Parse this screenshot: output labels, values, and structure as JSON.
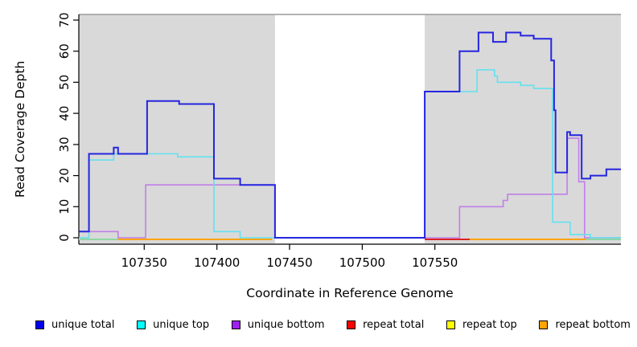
{
  "chart_data": {
    "type": "line",
    "subtype": "step",
    "title": "",
    "xlabel": "Coordinate in Reference Genome",
    "ylabel": "Read Coverage Depth",
    "xlim": [
      107305,
      107678
    ],
    "ylim": [
      0,
      70
    ],
    "xticks": [
      107350,
      107400,
      107450,
      107500,
      107550
    ],
    "yticks": [
      0,
      10,
      20,
      30,
      40,
      50,
      60,
      70
    ],
    "grid": false,
    "legend_position": "bottom",
    "plot_bg": "#ffffff",
    "shade_color": "#d9d9d9",
    "shaded_regions": [
      {
        "x0": 107305,
        "x1": 107440
      },
      {
        "x0": 107543,
        "x1": 107678
      }
    ],
    "series": [
      {
        "name": "unique total",
        "color": "#2525DF",
        "lw": 2,
        "points": [
          [
            107305,
            2
          ],
          [
            107312,
            27
          ],
          [
            107329,
            29
          ],
          [
            107332,
            27
          ],
          [
            107352,
            44
          ],
          [
            107374,
            43
          ],
          [
            107398,
            19
          ],
          [
            107416,
            17
          ],
          [
            107440,
            0
          ],
          [
            107543,
            47
          ],
          [
            107567,
            60
          ],
          [
            107580,
            66
          ],
          [
            107590,
            63
          ],
          [
            107599,
            66
          ],
          [
            107609,
            65
          ],
          [
            107618,
            64
          ],
          [
            107630,
            57
          ],
          [
            107632,
            41
          ],
          [
            107633,
            21
          ],
          [
            107641,
            34
          ],
          [
            107643,
            33
          ],
          [
            107651,
            19
          ],
          [
            107657,
            20
          ],
          [
            107668,
            22
          ]
        ]
      },
      {
        "name": "unique top",
        "color": "#63E1EF",
        "lw": 1.6,
        "points": [
          [
            107305,
            0
          ],
          [
            107312,
            25
          ],
          [
            107329,
            27
          ],
          [
            107373,
            26
          ],
          [
            107398,
            2
          ],
          [
            107416,
            0
          ],
          [
            107543,
            47
          ],
          [
            107579,
            54
          ],
          [
            107591,
            52
          ],
          [
            107593,
            50
          ],
          [
            107609,
            49
          ],
          [
            107618,
            48
          ],
          [
            107631,
            5
          ],
          [
            107643,
            1
          ],
          [
            107657,
            0
          ]
        ]
      },
      {
        "name": "unique bottom",
        "color": "#C07FE8",
        "lw": 1.6,
        "points": [
          [
            107305,
            2
          ],
          [
            107332,
            0
          ],
          [
            107351,
            17
          ],
          [
            107440,
            0
          ],
          [
            107567,
            10
          ],
          [
            107597,
            12
          ],
          [
            107600,
            14
          ],
          [
            107641,
            32
          ],
          [
            107649,
            18
          ],
          [
            107653,
            0
          ]
        ]
      },
      {
        "name": "repeat total",
        "color": "#FF0000",
        "lw": 1.6,
        "points": [
          [
            107305,
            0
          ]
        ]
      },
      {
        "name": "repeat top",
        "color": "#FFFF00",
        "lw": 1.6,
        "points": [
          [
            107305,
            0
          ]
        ]
      },
      {
        "name": "repeat bottom",
        "color": "#FFA500",
        "lw": 2,
        "points": [
          [
            107305,
            0
          ]
        ]
      }
    ],
    "baseline_accents": [
      {
        "x0": 107305,
        "x1": 107332,
        "color": "#90d6a4"
      },
      {
        "x0": 107332,
        "x1": 107438,
        "color": "#FFA500"
      },
      {
        "x0": 107543,
        "x1": 107574,
        "color": "#DD2222"
      },
      {
        "x0": 107574,
        "x1": 107654,
        "color": "#FFA500"
      },
      {
        "x0": 107654,
        "x1": 107678,
        "color": "#90d6a4"
      }
    ]
  },
  "legend": {
    "items": [
      {
        "label": "unique total",
        "color": "#0000EE"
      },
      {
        "label": "unique top",
        "color": "#00FFFF"
      },
      {
        "label": "unique bottom",
        "color": "#A020F0"
      },
      {
        "label": "repeat total",
        "color": "#FF0000"
      },
      {
        "label": "repeat top",
        "color": "#FFFF00"
      },
      {
        "label": "repeat bottom",
        "color": "#FFA500"
      }
    ]
  }
}
